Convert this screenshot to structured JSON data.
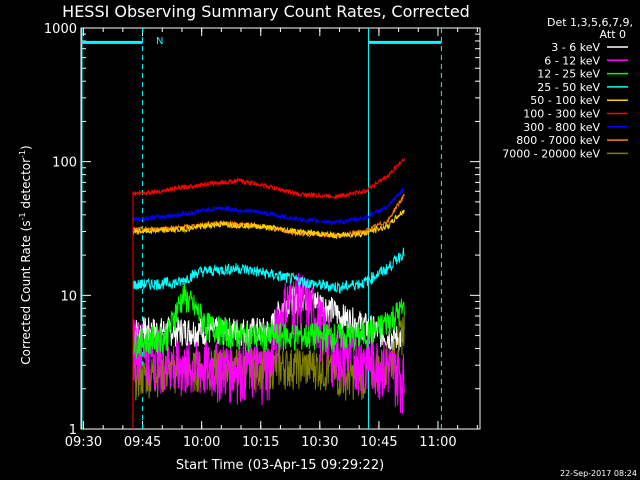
{
  "chart_data": {
    "type": "line",
    "title": "HESSI Observing Summary Count Rates, Corrected",
    "xlabel": "Start Time (03-Apr-15 09:29:22)",
    "ylabel_main": "Corrected Count Rate (s",
    "ylabel_sup1": "-1",
    "ylabel_mid": " detector",
    "ylabel_sup2": "-1",
    "ylabel_end": ")",
    "yscale": "log",
    "ylim": [
      1,
      1000
    ],
    "xlim": [
      "09:29:22",
      "11:10:40"
    ],
    "x_ticks": [
      "09:30",
      "09:45",
      "10:00",
      "10:15",
      "10:30",
      "10:45",
      "11:00"
    ],
    "x_tick_minutes": [
      0.63,
      15.63,
      30.63,
      45.63,
      60.63,
      75.63,
      90.63
    ],
    "x_range_minutes": [
      0,
      101.3
    ],
    "y_ticks": [
      "1",
      "10",
      "100",
      "1000"
    ],
    "y_tick_values": [
      1,
      10,
      100,
      1000
    ],
    "legend_header": [
      "Det 1,3,5,6,7,9,",
      "Att 0"
    ],
    "footer_date": "22-Sep-2017 08:24",
    "night_marker": "N",
    "data_start_min": 13.2,
    "data_end_min": 82.2,
    "series": [
      {
        "name": "3 - 6 keV",
        "color": "#ffffff",
        "x": [
          14,
          25,
          40,
          48,
          52,
          56,
          62,
          66,
          72,
          78,
          82
        ],
        "y": [
          5.5,
          5.5,
          5.5,
          5.5,
          9,
          10,
          8.5,
          7,
          6,
          5,
          4.8
        ],
        "noise": 0.25
      },
      {
        "name": "6 - 12 keV",
        "color": "#ff00ff",
        "x": [
          14,
          25,
          40,
          48,
          52,
          56,
          60,
          64,
          72,
          78,
          82
        ],
        "y": [
          4.5,
          3,
          3,
          3,
          9,
          10,
          7,
          4,
          3.5,
          3,
          2.5
        ],
        "noise": 0.5
      },
      {
        "name": "12 - 25 keV",
        "color": "#00ff00",
        "x": [
          14,
          22,
          26,
          32,
          40,
          50,
          60,
          70,
          75,
          82
        ],
        "y": [
          4.5,
          5,
          10,
          6,
          5,
          5,
          5,
          5,
          5.5,
          8
        ],
        "noise": 0.25
      },
      {
        "name": "25 - 50 keV",
        "color": "#00ffff",
        "x": [
          14,
          25,
          30,
          40,
          50,
          60,
          66,
          72,
          78,
          82
        ],
        "y": [
          12,
          12.5,
          15,
          16,
          14,
          12,
          11.5,
          12.5,
          16,
          21
        ],
        "noise": 0.1
      },
      {
        "name": "50 - 100 keV",
        "color": "#ffd000",
        "x": [
          14,
          25,
          35,
          45,
          55,
          65,
          72,
          78,
          82
        ],
        "y": [
          30,
          31,
          34,
          33,
          30,
          28,
          29,
          33,
          43
        ],
        "noise": 0.05
      },
      {
        "name": "100 - 300 keV",
        "color": "#ff0000",
        "x": [
          14,
          20,
          30,
          40,
          45,
          55,
          65,
          72,
          78,
          82
        ],
        "y": [
          58,
          60,
          67,
          72,
          68,
          57,
          55,
          60,
          78,
          105
        ],
        "noise": 0.04
      },
      {
        "name": "300 - 800 keV",
        "color": "#0000ff",
        "x": [
          14,
          25,
          35,
          45,
          55,
          65,
          72,
          78,
          82
        ],
        "y": [
          37,
          40,
          45,
          42,
          37,
          35,
          38,
          46,
          63
        ],
        "noise": 0.04
      },
      {
        "name": "800 - 7000 keV",
        "color": "#ff8000",
        "x": [
          14,
          25,
          35,
          45,
          55,
          65,
          72,
          78,
          82
        ],
        "y": [
          31,
          32,
          35,
          33,
          29,
          28,
          30,
          36,
          55
        ],
        "noise": 0.04
      },
      {
        "name": "7000 - 20000 keV",
        "color": "#808000",
        "x": [
          14,
          25,
          40,
          50,
          60,
          66,
          72,
          80,
          82
        ],
        "y": [
          2.5,
          2.8,
          3,
          3,
          3,
          2.5,
          2.5,
          3.5,
          6
        ],
        "noise": 0.35
      }
    ],
    "markers": [
      {
        "x": 0,
        "color": "#00ffff",
        "style": "solid"
      },
      {
        "x": 15.63,
        "color": "#00ffff",
        "style": "dashed"
      },
      {
        "x": 73.0,
        "color": "#00ffff",
        "style": "solid"
      },
      {
        "x": 91.5,
        "color": "#00ffff",
        "style": "dashed"
      }
    ],
    "bars": [
      {
        "x0": 0,
        "x1": 15.63,
        "y": 780,
        "color": "#00ffff"
      },
      {
        "x0": 73.0,
        "x1": 91.5,
        "y": 780,
        "color": "#00ffff"
      }
    ]
  }
}
